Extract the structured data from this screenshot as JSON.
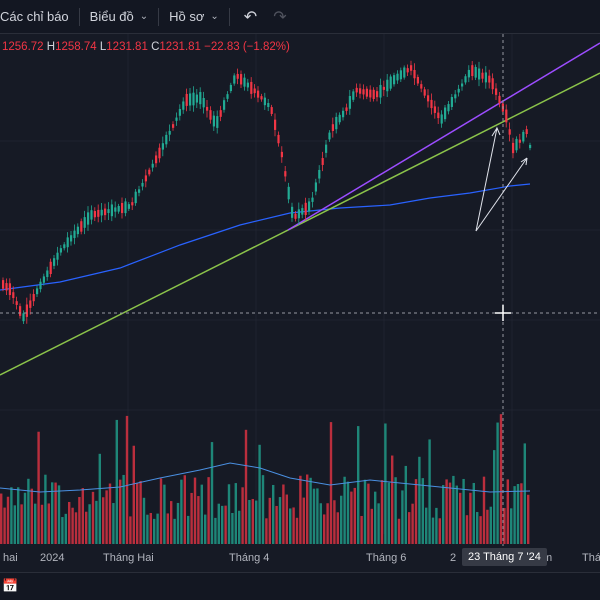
{
  "toolbar": {
    "indicators_label": "Các chỉ báo",
    "chart_label": "Biểu đồ",
    "profile_label": "Hồ sơ",
    "undo_icon": "undo-icon",
    "redo_icon": "redo-icon"
  },
  "ohlc": {
    "open": "1256.72",
    "high": "1258.74",
    "low": "1231.81",
    "close": "1231.81",
    "change": "−22.83 (−1.82%)",
    "prefix_o": "",
    "label_h": "H",
    "label_l": "L",
    "label_c": "C"
  },
  "xaxis": {
    "labels": [
      "hai",
      "2024",
      "Tháng Hai",
      "Tháng 4",
      "Tháng 6",
      "2",
      "m",
      "Thán"
    ],
    "crosshair_date": "23 Tháng 7 '24"
  },
  "colors": {
    "up": "#22ab94",
    "down": "#f23645",
    "ma": "#2962ff",
    "trend_green": "#8bc34a",
    "trend_purple": "#9c4dff",
    "background": "#161a25"
  },
  "bottom": {
    "calendar_icon": "calendar-range-icon"
  }
}
